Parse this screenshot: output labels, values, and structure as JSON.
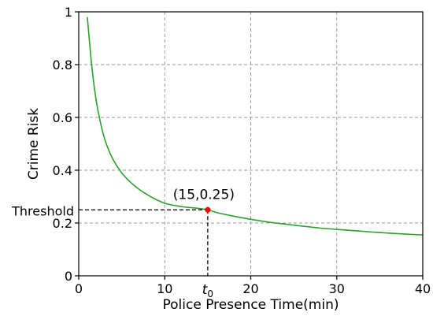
{
  "chart_data": {
    "type": "line",
    "title": "",
    "xlabel": "Police Presence Time(min)",
    "ylabel": "Crime Risk",
    "xlim": [
      0,
      40
    ],
    "ylim": [
      0,
      1
    ],
    "xticks": [
      0,
      10,
      20,
      30,
      40
    ],
    "yticks": [
      0,
      0.2,
      0.4,
      0.6,
      0.8,
      1
    ],
    "xtick_labels": [
      "0",
      "10",
      "20",
      "30",
      "40"
    ],
    "ytick_labels": [
      "0",
      "0.2",
      "0.4",
      "0.6",
      "0.8",
      "1"
    ],
    "grid": true,
    "series": [
      {
        "color": "#2ca02c",
        "x": [
          1,
          1.5,
          2,
          2.5,
          3,
          3.5,
          4,
          5,
          6,
          7,
          8,
          9,
          10,
          12,
          14,
          15,
          16,
          18,
          20,
          22,
          25,
          28,
          30,
          32,
          35,
          38,
          40
        ],
        "y": [
          0.98,
          0.8,
          0.67,
          0.585,
          0.52,
          0.475,
          0.44,
          0.39,
          0.355,
          0.328,
          0.307,
          0.289,
          0.275,
          0.262,
          0.255,
          0.25,
          0.24,
          0.226,
          0.214,
          0.204,
          0.192,
          0.181,
          0.176,
          0.171,
          0.164,
          0.158,
          0.155
        ]
      }
    ],
    "highlight_point": {
      "x": 15,
      "y": 0.25,
      "color": "#ff0000",
      "label": "(15,0.25)"
    },
    "annotations": {
      "y_marker_label": "Threshold",
      "x_marker_label": "t",
      "x_marker_subscript": "0"
    }
  }
}
